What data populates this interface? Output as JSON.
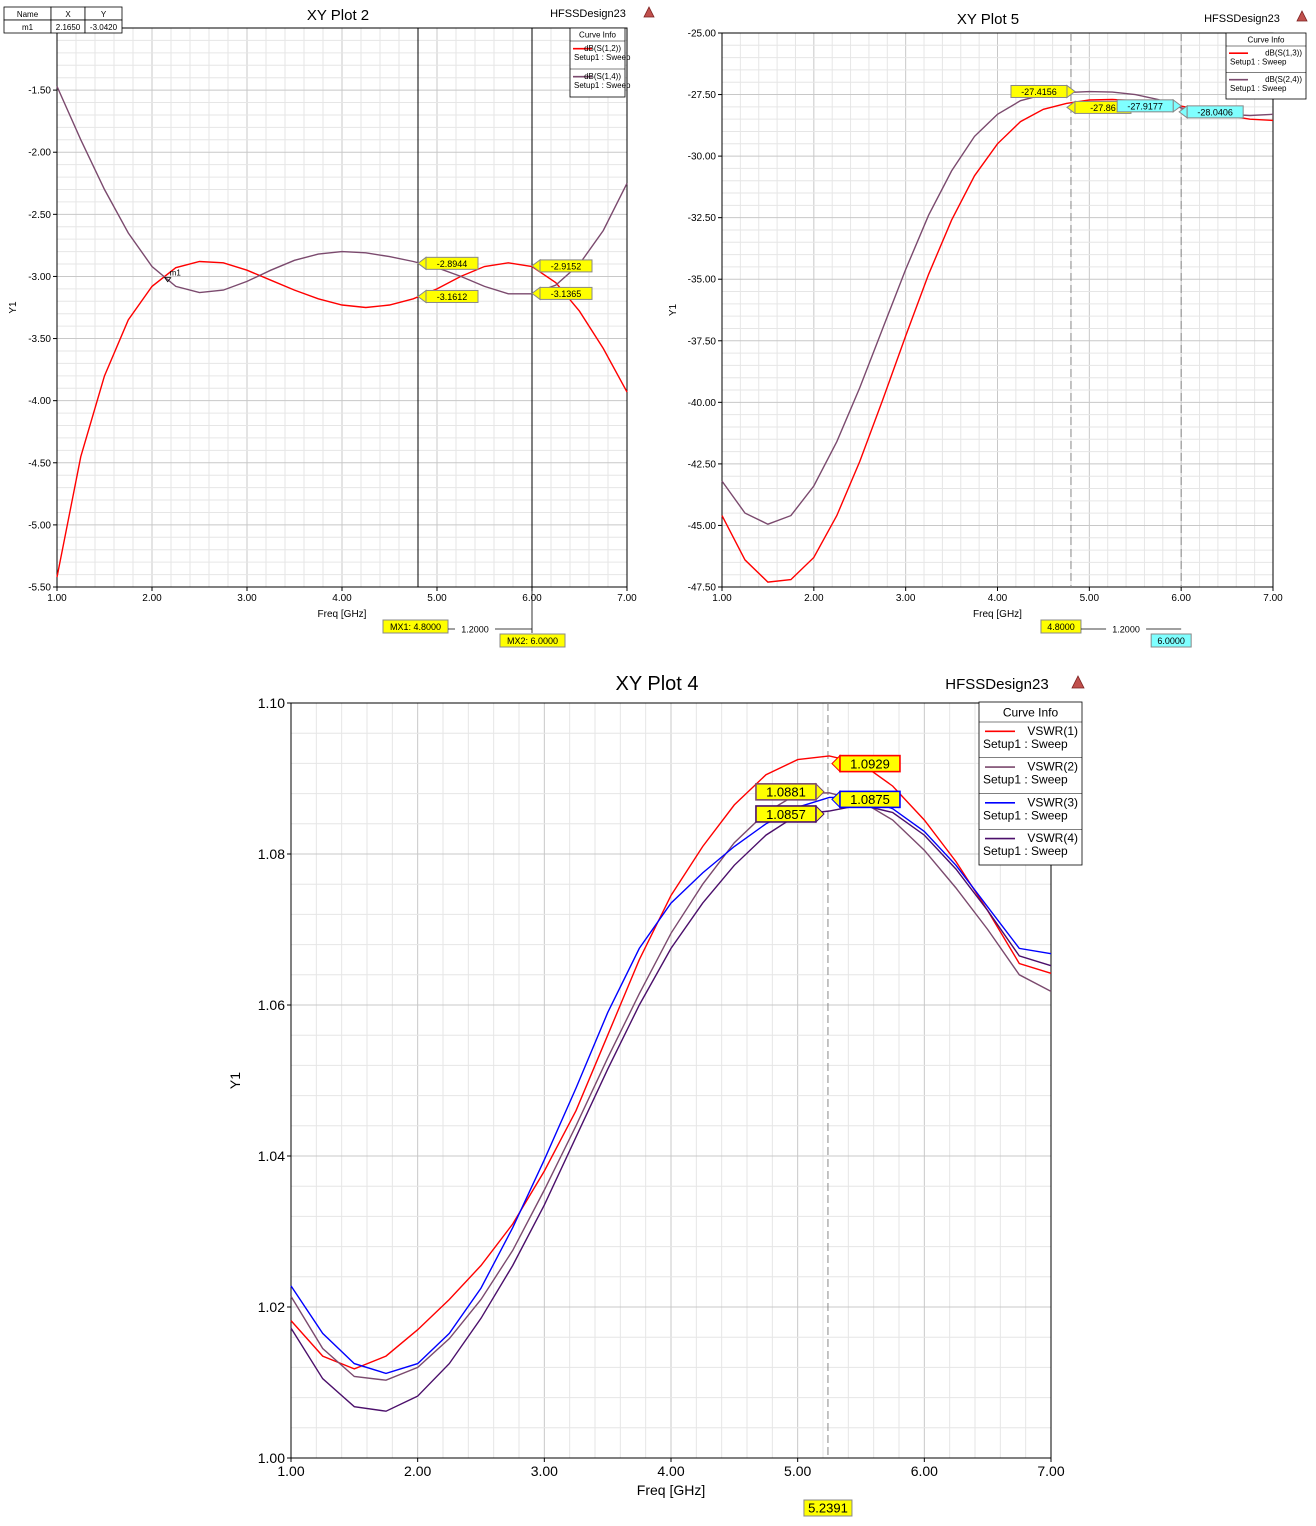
{
  "chart_data": [
    {
      "type": "line",
      "title": "XY Plot 2",
      "design": "HFSSDesign23",
      "xlabel": "Freq [GHz]",
      "ylabel": "Y1",
      "xlim": [
        1.0,
        7.0
      ],
      "ylim": [
        -5.5,
        -1.0
      ],
      "xticks": [
        "1.00",
        "2.00",
        "3.00",
        "4.00",
        "5.00",
        "6.00",
        "7.00"
      ],
      "yticks": [
        "-1.50",
        "-2.00",
        "-2.50",
        "-3.00",
        "-3.50",
        "-4.00",
        "-4.50",
        "-5.00",
        "-5.50"
      ],
      "ytick_values": [
        -1.5,
        -2.0,
        -2.5,
        -3.0,
        -3.5,
        -4.0,
        -4.5,
        -5.0,
        -5.5
      ],
      "legend_title": "Curve Info",
      "legend_position": "top-right",
      "grid": true,
      "series": [
        {
          "name": "dB(S(1,2))",
          "setup": "Setup1 : Sweep",
          "color": "#ff0000",
          "x": [
            1.0,
            1.25,
            1.5,
            1.75,
            2.0,
            2.25,
            2.5,
            2.75,
            3.0,
            3.25,
            3.5,
            3.75,
            4.0,
            4.25,
            4.5,
            4.75,
            5.0,
            5.25,
            5.5,
            5.75,
            6.0,
            6.25,
            6.5,
            6.75,
            7.0
          ],
          "y": [
            -5.42,
            -4.45,
            -3.8,
            -3.35,
            -3.08,
            -2.93,
            -2.88,
            -2.89,
            -2.95,
            -3.03,
            -3.11,
            -3.18,
            -3.23,
            -3.25,
            -3.23,
            -3.18,
            -3.1,
            -3.0,
            -2.92,
            -2.89,
            -2.92,
            -3.05,
            -3.28,
            -3.58,
            -3.93
          ]
        },
        {
          "name": "dB(S(1,4))",
          "setup": "Setup1 : Sweep",
          "color": "#7b4a6e",
          "x": [
            1.0,
            1.25,
            1.5,
            1.75,
            2.0,
            2.25,
            2.5,
            2.75,
            3.0,
            3.25,
            3.5,
            3.75,
            4.0,
            4.25,
            4.5,
            4.75,
            5.0,
            5.25,
            5.5,
            5.75,
            6.0,
            6.25,
            6.5,
            6.75,
            7.0
          ],
          "y": [
            -1.47,
            -1.9,
            -2.3,
            -2.65,
            -2.92,
            -3.08,
            -3.13,
            -3.11,
            -3.04,
            -2.95,
            -2.87,
            -2.82,
            -2.8,
            -2.81,
            -2.84,
            -2.88,
            -2.93,
            -3.0,
            -3.08,
            -3.14,
            -3.14,
            -3.07,
            -2.9,
            -2.63,
            -2.25
          ]
        }
      ],
      "marker_table": {
        "headers": [
          "Name",
          "X",
          "Y"
        ],
        "rows": [
          [
            "m1",
            "2.1650",
            "-3.0420"
          ]
        ]
      },
      "point_markers": [
        {
          "label": "m1",
          "x": 2.165,
          "y": -3.042
        }
      ],
      "cursors": [
        {
          "label": "MX1: 4.8000",
          "x": 4.8
        },
        {
          "label": "MX2: 6.0000",
          "x": 6.0
        }
      ],
      "delta": "1.2000",
      "value_tags": [
        {
          "text": "-2.8944",
          "x": 4.8,
          "y": -2.8944
        },
        {
          "text": "-3.1612",
          "x": 4.8,
          "y": -3.1612
        },
        {
          "text": "-2.9152",
          "x": 6.0,
          "y": -2.9152
        },
        {
          "text": "-3.1365",
          "x": 6.0,
          "y": -3.1365
        }
      ]
    },
    {
      "type": "line",
      "title": "XY Plot 5",
      "design": "HFSSDesign23",
      "xlabel": "Freq [GHz]",
      "ylabel": "Y1",
      "xlim": [
        1.0,
        7.0
      ],
      "ylim": [
        -47.5,
        -25.0
      ],
      "xticks": [
        "1.00",
        "2.00",
        "3.00",
        "4.00",
        "5.00",
        "6.00",
        "7.00"
      ],
      "yticks": [
        "-25.00",
        "-27.50",
        "-30.00",
        "-32.50",
        "-35.00",
        "-37.50",
        "-40.00",
        "-42.50",
        "-45.00",
        "-47.50"
      ],
      "ytick_values": [
        -25.0,
        -27.5,
        -30.0,
        -32.5,
        -35.0,
        -37.5,
        -40.0,
        -42.5,
        -45.0,
        -47.5
      ],
      "legend_title": "Curve Info",
      "legend_position": "top-right",
      "grid": true,
      "series": [
        {
          "name": "dB(S(1,3))",
          "setup": "Setup1 : Sweep",
          "color": "#ff0000",
          "x": [
            1.0,
            1.25,
            1.5,
            1.75,
            2.0,
            2.25,
            2.5,
            2.75,
            3.0,
            3.25,
            3.5,
            3.75,
            4.0,
            4.25,
            4.5,
            4.75,
            5.0,
            5.25,
            5.5,
            5.75,
            6.0,
            6.25,
            6.5,
            6.75,
            7.0
          ],
          "y": [
            -44.6,
            -46.4,
            -47.3,
            -47.2,
            -46.3,
            -44.6,
            -42.4,
            -39.9,
            -37.3,
            -34.8,
            -32.6,
            -30.8,
            -29.5,
            -28.6,
            -28.1,
            -27.86,
            -27.72,
            -27.7,
            -27.75,
            -27.85,
            -27.97,
            -28.15,
            -28.35,
            -28.5,
            -28.55
          ]
        },
        {
          "name": "dB(S(2,4))",
          "setup": "Setup1 : Sweep",
          "color": "#7b4a6e",
          "x": [
            1.0,
            1.25,
            1.5,
            1.75,
            2.0,
            2.25,
            2.5,
            2.75,
            3.0,
            3.25,
            3.5,
            3.75,
            4.0,
            4.25,
            4.5,
            4.75,
            5.0,
            5.25,
            5.5,
            5.75,
            6.0,
            6.25,
            6.5,
            6.75,
            7.0
          ],
          "y": [
            -43.2,
            -44.5,
            -44.95,
            -44.6,
            -43.4,
            -41.6,
            -39.4,
            -37.0,
            -34.6,
            -32.4,
            -30.6,
            -29.2,
            -28.3,
            -27.75,
            -27.5,
            -27.42,
            -27.38,
            -27.4,
            -27.5,
            -27.7,
            -28.04,
            -28.2,
            -28.3,
            -28.35,
            -28.3
          ]
        }
      ],
      "cursors": [
        {
          "label": "4.8000",
          "x": 4.8
        },
        {
          "label": "6.0000",
          "x": 6.0
        }
      ],
      "delta": "1.2000",
      "value_tags": [
        {
          "text": "-27.4156",
          "x": 4.8,
          "y": -27.4156
        },
        {
          "text": "-27.86",
          "x": 4.8,
          "y": -27.86
        },
        {
          "text": "-27.9177",
          "x": 6.0,
          "y": -27.9177
        },
        {
          "text": "-28.0406",
          "x": 6.0,
          "y": -28.0406
        }
      ]
    },
    {
      "type": "line",
      "title": "XY Plot 4",
      "design": "HFSSDesign23",
      "xlabel": "Freq [GHz]",
      "ylabel": "Y1",
      "xlim": [
        1.0,
        7.0
      ],
      "ylim": [
        1.0,
        1.1
      ],
      "xticks": [
        "1.00",
        "2.00",
        "3.00",
        "4.00",
        "5.00",
        "6.00",
        "7.00"
      ],
      "yticks": [
        "1.10",
        "1.08",
        "1.06",
        "1.04",
        "1.02",
        "1.00"
      ],
      "ytick_values": [
        1.1,
        1.08,
        1.06,
        1.04,
        1.02,
        1.0
      ],
      "legend_title": "Curve Info",
      "legend_position": "top-right",
      "grid": true,
      "series": [
        {
          "name": "VSWR(1)",
          "setup": "Setup1 : Sweep",
          "color": "#ff0000",
          "x": [
            1.0,
            1.25,
            1.5,
            1.75,
            2.0,
            2.25,
            2.5,
            2.75,
            3.0,
            3.25,
            3.5,
            3.75,
            4.0,
            4.25,
            4.5,
            4.75,
            5.0,
            5.25,
            5.5,
            5.75,
            6.0,
            6.25,
            6.5,
            6.75,
            7.0
          ],
          "y": [
            1.0182,
            1.0135,
            1.0118,
            1.0135,
            1.017,
            1.021,
            1.0255,
            1.031,
            1.038,
            1.046,
            1.056,
            1.066,
            1.0745,
            1.081,
            1.0865,
            1.0905,
            1.0925,
            1.093,
            1.092,
            1.089,
            1.0845,
            1.079,
            1.0725,
            1.0655,
            1.0642
          ]
        },
        {
          "name": "VSWR(2)",
          "setup": "Setup1 : Sweep",
          "color": "#7b4a6e",
          "x": [
            1.0,
            1.25,
            1.5,
            1.75,
            2.0,
            2.25,
            2.5,
            2.75,
            3.0,
            3.25,
            3.5,
            3.75,
            4.0,
            4.25,
            4.5,
            4.75,
            5.0,
            5.25,
            5.5,
            5.75,
            6.0,
            6.25,
            6.5,
            6.75,
            7.0
          ],
          "y": [
            1.0214,
            1.0145,
            1.0108,
            1.0103,
            1.012,
            1.0158,
            1.021,
            1.0275,
            1.0355,
            1.044,
            1.053,
            1.0615,
            1.0695,
            1.076,
            1.0815,
            1.0855,
            1.088,
            1.0881,
            1.087,
            1.0845,
            1.0805,
            1.0755,
            1.07,
            1.064,
            1.0618
          ]
        },
        {
          "name": "VSWR(3)",
          "setup": "Setup1 : Sweep",
          "color": "#0000ff",
          "x": [
            1.0,
            1.25,
            1.5,
            1.75,
            2.0,
            2.25,
            2.5,
            2.75,
            3.0,
            3.25,
            3.5,
            3.75,
            4.0,
            4.25,
            4.5,
            4.75,
            5.0,
            5.25,
            5.5,
            5.75,
            6.0,
            6.25,
            6.5,
            6.75,
            7.0
          ],
          "y": [
            1.0228,
            1.0165,
            1.0125,
            1.0112,
            1.0125,
            1.0165,
            1.0225,
            1.0305,
            1.0395,
            1.049,
            1.059,
            1.0675,
            1.0735,
            1.0775,
            1.081,
            1.084,
            1.0862,
            1.0875,
            1.0875,
            1.086,
            1.083,
            1.0785,
            1.073,
            1.0675,
            1.0668
          ]
        },
        {
          "name": "VSWR(4)",
          "setup": "Setup1 : Sweep",
          "color": "#4b0f6b",
          "x": [
            1.0,
            1.25,
            1.5,
            1.75,
            2.0,
            2.25,
            2.5,
            2.75,
            3.0,
            3.25,
            3.5,
            3.75,
            4.0,
            4.25,
            4.5,
            4.75,
            5.0,
            5.25,
            5.5,
            5.75,
            6.0,
            6.25,
            6.5,
            6.75,
            7.0
          ],
          "y": [
            1.0172,
            1.0105,
            1.0068,
            1.0062,
            1.0082,
            1.0125,
            1.0185,
            1.0255,
            1.0335,
            1.0425,
            1.0515,
            1.06,
            1.0675,
            1.0735,
            1.0785,
            1.0825,
            1.0852,
            1.0857,
            1.0865,
            1.0855,
            1.0825,
            1.078,
            1.0725,
            1.0665,
            1.0652
          ]
        }
      ],
      "cursors": [
        {
          "label": "5.2391",
          "x": 5.2391
        }
      ],
      "value_tags": [
        {
          "text": "1.0929",
          "x": 5.2391,
          "y": 1.0929
        },
        {
          "text": "1.0881",
          "x": 5.2391,
          "y": 1.0881
        },
        {
          "text": "1.0857",
          "x": 5.2391,
          "y": 1.0857
        },
        {
          "text": "1.0875",
          "x": 5.2391,
          "y": 1.0875
        }
      ]
    }
  ]
}
